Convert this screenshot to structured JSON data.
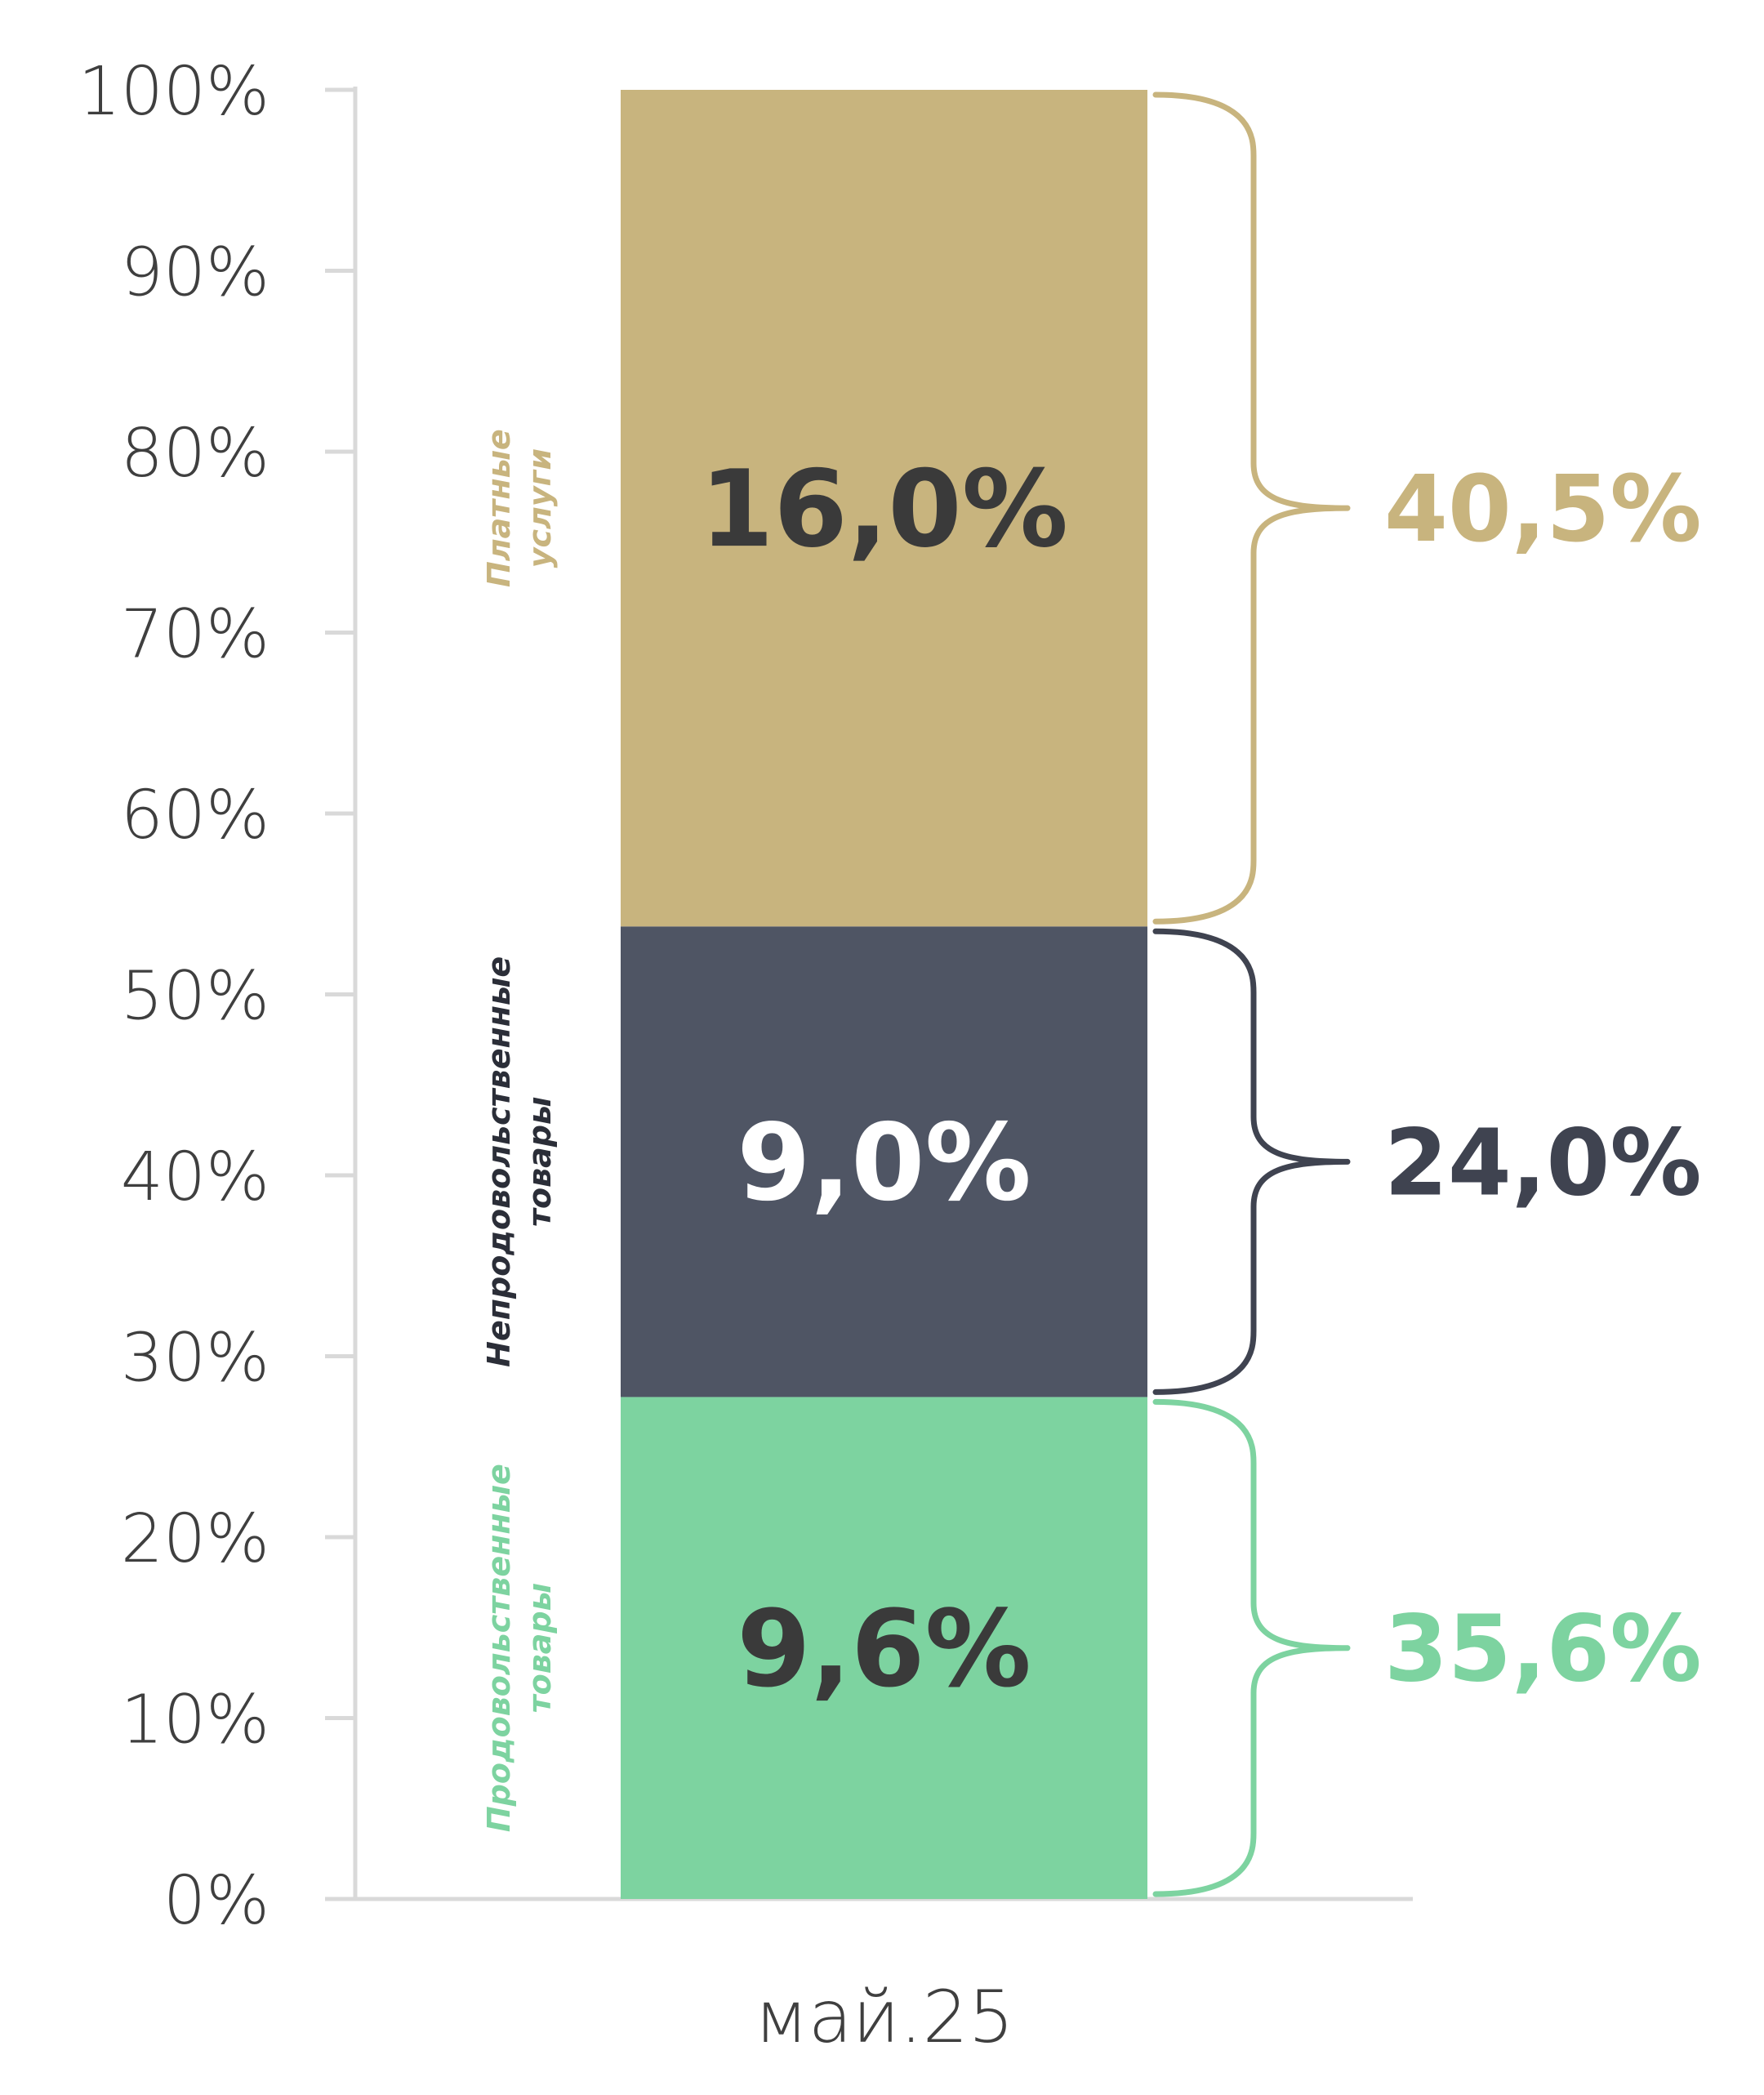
{
  "chart_data": {
    "type": "bar",
    "stacked": true,
    "categories": [
      "май.25"
    ],
    "ylim": [
      0,
      100
    ],
    "yticks": [
      "0%",
      "10%",
      "20%",
      "30%",
      "40%",
      "50%",
      "60%",
      "70%",
      "80%",
      "90%",
      "100%"
    ],
    "grid": false,
    "series": [
      {
        "name": "Продовольственные товары",
        "label_lines": [
          "Продовольственные",
          "товары"
        ],
        "value": 9.6,
        "value_label": "9,6%",
        "share": 35.6,
        "share_label": "35,6%",
        "color": "#7dd3a0",
        "value_label_color": "#3a3a3a",
        "share_color": "#7dd3a0"
      },
      {
        "name": "Непродовольственные товары",
        "label_lines": [
          "Непродовольственные",
          "товары"
        ],
        "value": 9.0,
        "value_label": "9,0%",
        "share": 24.0,
        "share_label": "24,0%",
        "color": "#4f5564",
        "value_label_color": "#ffffff",
        "share_color": "#3f4350",
        "side_label_color": "#2b2e38"
      },
      {
        "name": "Платные услуги",
        "label_lines": [
          "Платные",
          "услуги"
        ],
        "value": 16.0,
        "value_label": "16,0%",
        "share": 40.5,
        "share_label": "40,5%",
        "color": "#c8b47e",
        "value_label_color": "#3a3a3a",
        "share_color": "#c8b47e"
      }
    ],
    "axis_color": "#d9d9d9"
  }
}
